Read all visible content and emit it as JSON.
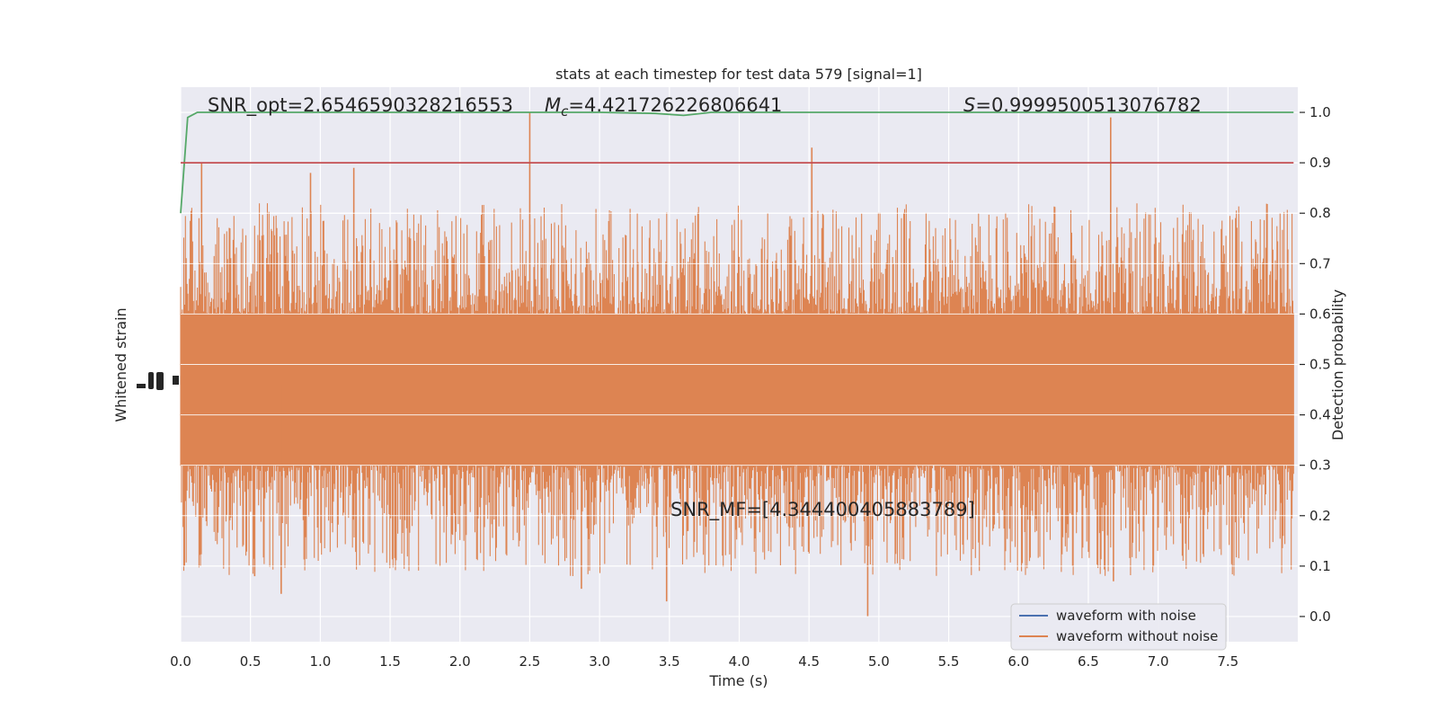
{
  "chart_data": {
    "type": "line",
    "title": "stats at each timestep for test data 579 [signal=1]",
    "xlabel": "Time (s)",
    "ylabel_left": "Whitened strain",
    "ylabel_right": "Detection probability",
    "xlim": [
      0.0,
      8.0
    ],
    "ylim_right": [
      -0.05,
      1.05
    ],
    "x_ticks": [
      "0.0",
      "0.5",
      "1.0",
      "1.5",
      "2.0",
      "2.5",
      "3.0",
      "3.5",
      "4.0",
      "4.5",
      "5.0",
      "5.5",
      "6.0",
      "6.5",
      "7.0",
      "7.5"
    ],
    "x_tick_values": [
      0.0,
      0.5,
      1.0,
      1.5,
      2.0,
      2.5,
      3.0,
      3.5,
      4.0,
      4.5,
      5.0,
      5.5,
      6.0,
      6.5,
      7.0,
      7.5
    ],
    "y_ticks_right": [
      "0.0",
      "0.1",
      "0.2",
      "0.3",
      "0.4",
      "0.5",
      "0.6",
      "0.7",
      "0.8",
      "0.9",
      "1.0"
    ],
    "y_tick_values_right": [
      0.0,
      0.1,
      0.2,
      0.3,
      0.4,
      0.5,
      0.6,
      0.7,
      0.8,
      0.9,
      1.0
    ],
    "grid": true,
    "legend_position": "bottom-right",
    "legend": [
      {
        "label": "waveform with noise",
        "color": "#4c72b0"
      },
      {
        "label": "waveform without noise",
        "color": "#dd8452"
      }
    ],
    "series": [
      {
        "name": "detection probability",
        "color": "#55a868",
        "x": [
          0.0,
          0.05,
          0.12,
          0.5,
          1.0,
          2.0,
          3.0,
          3.4,
          3.6,
          3.8,
          4.0,
          5.0,
          6.0,
          7.0,
          7.97
        ],
        "y": [
          0.8,
          0.99,
          1.0,
          1.0,
          1.0,
          1.0,
          1.0,
          0.998,
          0.994,
          1.0,
          1.0,
          1.0,
          1.0,
          1.0,
          1.0
        ]
      },
      {
        "name": "threshold",
        "color": "#c44e52",
        "x": [
          0.0,
          7.97
        ],
        "y": [
          0.9,
          0.9
        ]
      }
    ],
    "noise_band": {
      "name": "waveform without noise",
      "color": "#dd8452",
      "center": 0.46,
      "band_low": 0.3,
      "band_high": 0.6,
      "notable_spikes_high": [
        {
          "x": 2.5,
          "y": 1.0
        },
        {
          "x": 6.66,
          "y": 0.99
        },
        {
          "x": 4.52,
          "y": 0.93
        },
        {
          "x": 0.15,
          "y": 0.9
        },
        {
          "x": 1.24,
          "y": 0.89
        },
        {
          "x": 0.93,
          "y": 0.88
        }
      ],
      "notable_spikes_low": [
        {
          "x": 4.92,
          "y": 0.0
        },
        {
          "x": 3.48,
          "y": 0.03
        },
        {
          "x": 0.72,
          "y": 0.045
        },
        {
          "x": 2.87,
          "y": 0.055
        },
        {
          "x": 6.68,
          "y": 0.07
        },
        {
          "x": 0.53,
          "y": 0.08
        }
      ]
    },
    "annotations": {
      "snr_opt": "SNR_opt=2.6546590328216553",
      "mc_symbol": "M",
      "mc_sub": "c",
      "mc_value": "=4.421726226806641",
      "s_symbol": "S",
      "s_value": "=0.9999500513076782",
      "snr_mf": "SNR_MF=[4.344400405883789]"
    }
  },
  "colors": {
    "plot_background": "#eaeaf2",
    "grid": "#ffffff",
    "text": "#262626"
  }
}
